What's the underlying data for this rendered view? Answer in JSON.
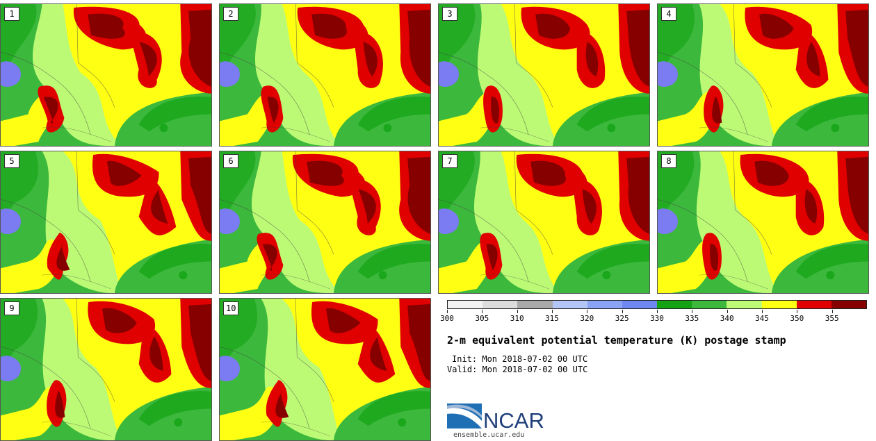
{
  "panels": [
    {
      "number": "1"
    },
    {
      "number": "2"
    },
    {
      "number": "3"
    },
    {
      "number": "4"
    },
    {
      "number": "5"
    },
    {
      "number": "6"
    },
    {
      "number": "7"
    },
    {
      "number": "8"
    },
    {
      "number": "9"
    },
    {
      "number": "10"
    }
  ],
  "legend": {
    "colors": [
      "#f2f2f2",
      "#dcdcdc",
      "#a9a9a9",
      "#b3c6f7",
      "#8aa4f5",
      "#6f87f0",
      "#13a313",
      "#3cb83c",
      "#bcfa75",
      "#ffff14",
      "#e00000",
      "#870000"
    ],
    "ticks": [
      "300",
      "305",
      "310",
      "315",
      "320",
      "325",
      "330",
      "335",
      "340",
      "345",
      "350",
      "355"
    ]
  },
  "title": "2-m equivalent potential temperature (K) postage stamp",
  "init": "Init: Mon 2018-07-02 00 UTC",
  "valid": "Valid: Mon 2018-07-02 00 UTC",
  "logo": {
    "text": "NCAR",
    "url": "ensemble.ucar.edu"
  }
}
